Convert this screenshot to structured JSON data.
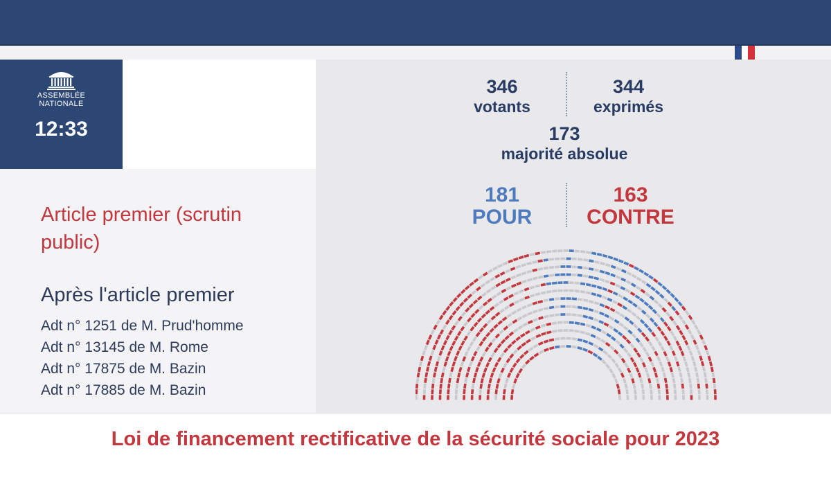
{
  "header": {
    "logo_line1": "ASSEMBLÉE",
    "logo_line2": "NATIONALE",
    "time": "12:33"
  },
  "colors": {
    "navy": "#2d4774",
    "pour_blue": "#4e7bbd",
    "contre_red": "#c3373e",
    "empty_seat": "#c9c9cd",
    "flag_blue": "#2d4a8a",
    "flag_white": "#ffffff",
    "flag_red": "#d4313a"
  },
  "agenda": {
    "current_item": "Article premier (scrutin public)",
    "next_heading": "Après l'article premier",
    "amendments": [
      "Adt n° 1251 de M. Prud'homme",
      "Adt n° 13145 de M. Rome",
      "Adt n° 17875 de M. Bazin",
      "Adt n° 17885 de M. Bazin"
    ]
  },
  "vote": {
    "votants": "346",
    "votants_label": "votants",
    "exprimes": "344",
    "exprimes_label": "exprimés",
    "majorite": "173",
    "majorite_label": "majorité absolue",
    "pour": "181",
    "pour_label": "POUR",
    "contre": "163",
    "contre_label": "CONTRE"
  },
  "footer": {
    "title": "Loi de financement rectificative de la sécurité sociale pour 2023"
  }
}
